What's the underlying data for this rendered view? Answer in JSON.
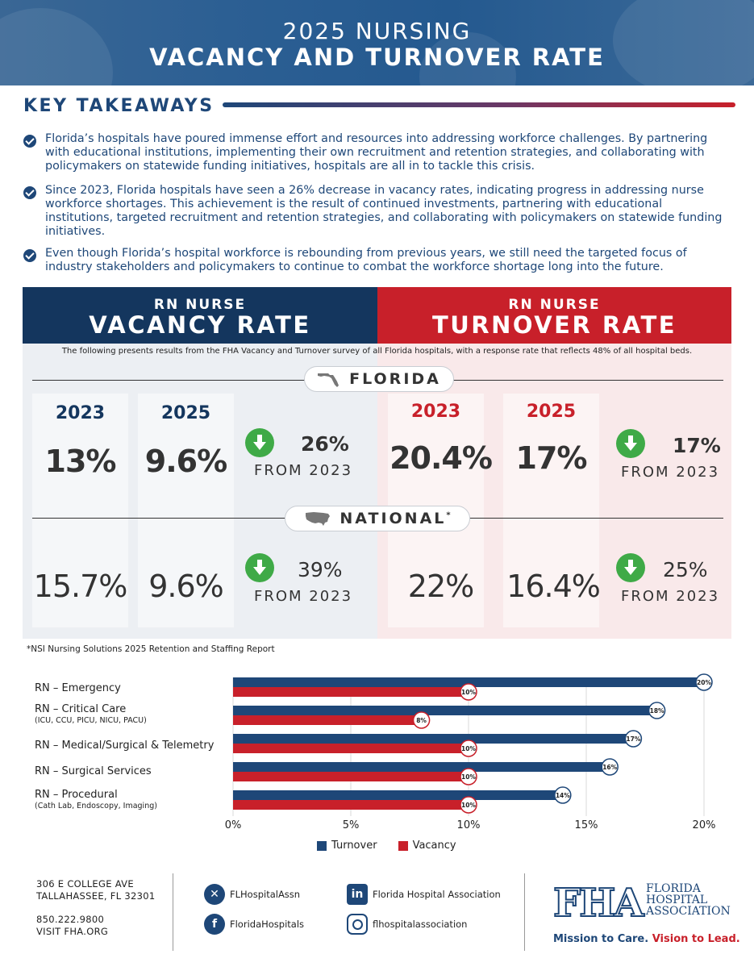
{
  "header": {
    "line1": "2025 NURSING",
    "line2": "VACANCY AND TURNOVER RATE"
  },
  "takeaways": {
    "title": "KEY TAKEAWAYS",
    "items": [
      "Florida’s hospitals have poured immense effort and resources into addressing workforce challenges. By partnering with educational institutions, implementing their own recruitment and retention strategies, and collaborating with policymakers on statewide funding initiatives, hospitals are all in to tackle this crisis.",
      "Since 2023, Florida hospitals have seen a 26% decrease in vacancy rates, indicating progress in addressing nurse workforce shortages. This achievement is the result of continued investments, partnering with educational institutions, targeted recruitment and retention strategies, and collaborating with policymakers on statewide funding initiatives.",
      "Even though Florida’s hospital workforce is rebounding from previous years, we still need the targeted focus of industry stakeholders and policymakers to continue to combat the workforce shortage long into the future."
    ]
  },
  "vacancy_header": {
    "small": "RN NURSE",
    "big": "VACANCY RATE"
  },
  "turnover_header": {
    "small": "RN NURSE",
    "big": "TURNOVER RATE"
  },
  "survey_note": "The following presents results from the FHA Vacancy and Turnover survey of all Florida hospitals, with a response rate that reflects 48% of all hospital beds.",
  "florida": {
    "label": "FLORIDA",
    "vacancy": {
      "year1": "2023",
      "val1": "13%",
      "year2": "2025",
      "val2": "9.6%",
      "change": "26%",
      "from": "FROM 2023"
    },
    "turnover": {
      "year1": "2023",
      "val1": "20.4%",
      "year2": "2025",
      "val2": "17%",
      "change": "17%",
      "from": "FROM 2023"
    }
  },
  "national": {
    "label": "NATIONAL",
    "marker": "*",
    "vacancy": {
      "val1": "15.7%",
      "val2": "9.6%",
      "change": "39%",
      "from": "FROM 2023"
    },
    "turnover": {
      "val1": "22%",
      "val2": "16.4%",
      "change": "25%",
      "from": "FROM 2023"
    }
  },
  "footnote": "*NSI Nursing Solutions 2025 Retention and Staffing Report",
  "chart_data": {
    "type": "bar",
    "orientation": "horizontal",
    "categories": [
      "RN – Emergency",
      "RN – Critical Care",
      "RN – Medical/Surgical & Telemetry",
      "RN – Surgical Services",
      "RN – Procedural"
    ],
    "category_subtitles": [
      "",
      "(ICU, CCU, PICU, NICU, PACU)",
      "",
      "",
      "(Cath Lab, Endoscopy, Imaging)"
    ],
    "series": [
      {
        "name": "Turnover",
        "color": "#1e4778",
        "values": [
          20,
          18,
          17,
          16,
          14
        ],
        "labels": [
          "20%",
          "18%",
          "17%",
          "16%",
          "14%"
        ]
      },
      {
        "name": "Vacancy",
        "color": "#c8202a",
        "values": [
          10,
          8,
          10,
          10,
          10
        ],
        "labels": [
          "10%",
          "8%",
          "10%",
          "10%",
          "10%"
        ]
      }
    ],
    "xlim": [
      0,
      20
    ],
    "xticks": [
      "0%",
      "5%",
      "10%",
      "15%",
      "20%"
    ],
    "grid": true,
    "legend_position": "bottom-center"
  },
  "footer": {
    "address1": "306 E COLLEGE AVE",
    "address2": "TALLAHASSEE, FL 32301",
    "phone": "850.222.9800",
    "web": "VISIT FHA.ORG",
    "x_handle": "FLHospitalAssn",
    "facebook": "FloridaHospitals",
    "linkedin": "Florida Hospital Association",
    "instagram": "flhospitalassociation",
    "logo_mark": "FHA",
    "logo_line1": "FLORIDA",
    "logo_line2": "HOSPITAL",
    "logo_line3": "ASSOCIATION",
    "tagline_a": "Mission to Care.",
    "tagline_b": "Vision to Lead."
  },
  "colors": {
    "navy": "#14365e",
    "blue": "#1e4778",
    "red": "#c8202a",
    "green": "#3faa47"
  }
}
